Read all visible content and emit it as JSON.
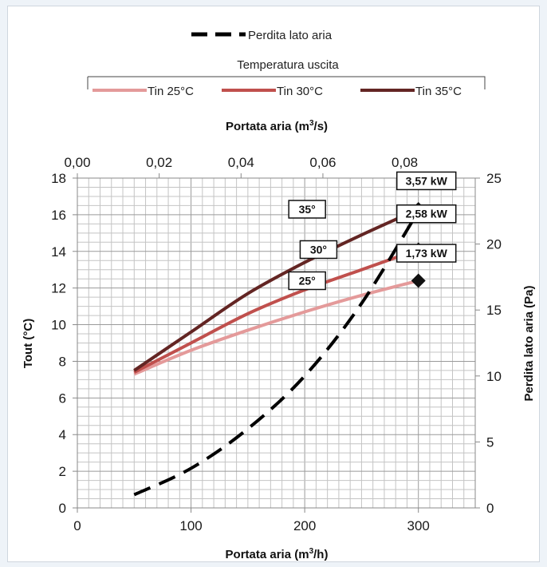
{
  "chart_data": {
    "type": "line",
    "x_bottom": {
      "label": "Portata aria (m³/h)",
      "label_base": "Portata aria (m",
      "label_sup": "3",
      "label_tail": "/h)",
      "range": [
        0,
        350
      ],
      "ticks": [
        0,
        100,
        200,
        300
      ]
    },
    "x_top": {
      "label": "Portata aria (m³/s)",
      "label_base": "Portata aria (m",
      "label_sup": "3",
      "label_tail": "/s)",
      "ticks": [
        "0,00",
        "0,02",
        "0,04",
        "0,06",
        "0,08"
      ],
      "tick_values": [
        0,
        0.02,
        0.04,
        0.06,
        0.08
      ]
    },
    "y_left": {
      "label": "Tout (°C)",
      "range": [
        0,
        18
      ],
      "ticks": [
        0,
        2,
        4,
        6,
        8,
        10,
        12,
        14,
        16,
        18
      ]
    },
    "y_right": {
      "label": "Perdita lato aria (Pa)",
      "range": [
        0,
        25
      ],
      "ticks": [
        0,
        5,
        10,
        15,
        20,
        25
      ]
    },
    "legend_top": {
      "entry": "Perdita lato aria"
    },
    "legend_group": {
      "title": "Temperatura uscita",
      "entries": [
        "Tin 25°C",
        "Tin 30°C",
        "Tin 35°C"
      ]
    },
    "series": [
      {
        "name": "Tin 25°C",
        "axis": "left",
        "color": "#e49a9a",
        "x": [
          50,
          100,
          150,
          200,
          250,
          300
        ],
        "y": [
          7.3,
          8.6,
          9.7,
          10.7,
          11.6,
          12.4
        ]
      },
      {
        "name": "Tin 30°C",
        "axis": "left",
        "color": "#c0504d",
        "x": [
          50,
          100,
          150,
          200,
          250,
          300
        ],
        "y": [
          7.4,
          9.0,
          10.6,
          11.9,
          13.0,
          14.1
        ]
      },
      {
        "name": "Tin 35°C",
        "axis": "left",
        "color": "#632523",
        "x": [
          50,
          100,
          150,
          200,
          250,
          300
        ],
        "y": [
          7.5,
          9.6,
          11.7,
          13.4,
          14.9,
          16.3
        ]
      },
      {
        "name": "Perdita lato aria",
        "axis": "right",
        "color": "#000000",
        "dash": true,
        "x": [
          50,
          100,
          150,
          200,
          250,
          300
        ],
        "y": [
          1.0,
          3.0,
          6.0,
          10.0,
          15.5,
          22.5
        ]
      }
    ],
    "annotations": {
      "temperature_labels": [
        {
          "text": "35°",
          "x": 240,
          "y": 16.3
        },
        {
          "text": "30°",
          "x": 250,
          "y": 14.1
        },
        {
          "text": "25°",
          "x": 240,
          "y": 12.4
        }
      ],
      "power_labels": [
        {
          "text": "3,57 kW",
          "x": 300,
          "y": 17.85
        },
        {
          "text": "2,58 kW",
          "x": 300,
          "y": 16.05
        },
        {
          "text": "1,73 kW",
          "x": 300,
          "y": 13.9
        }
      ],
      "diamond_markers": [
        {
          "x": 300,
          "y": 16.3
        },
        {
          "x": 300,
          "y": 14.1
        },
        {
          "x": 300,
          "y": 12.4
        }
      ]
    },
    "grid": true
  }
}
